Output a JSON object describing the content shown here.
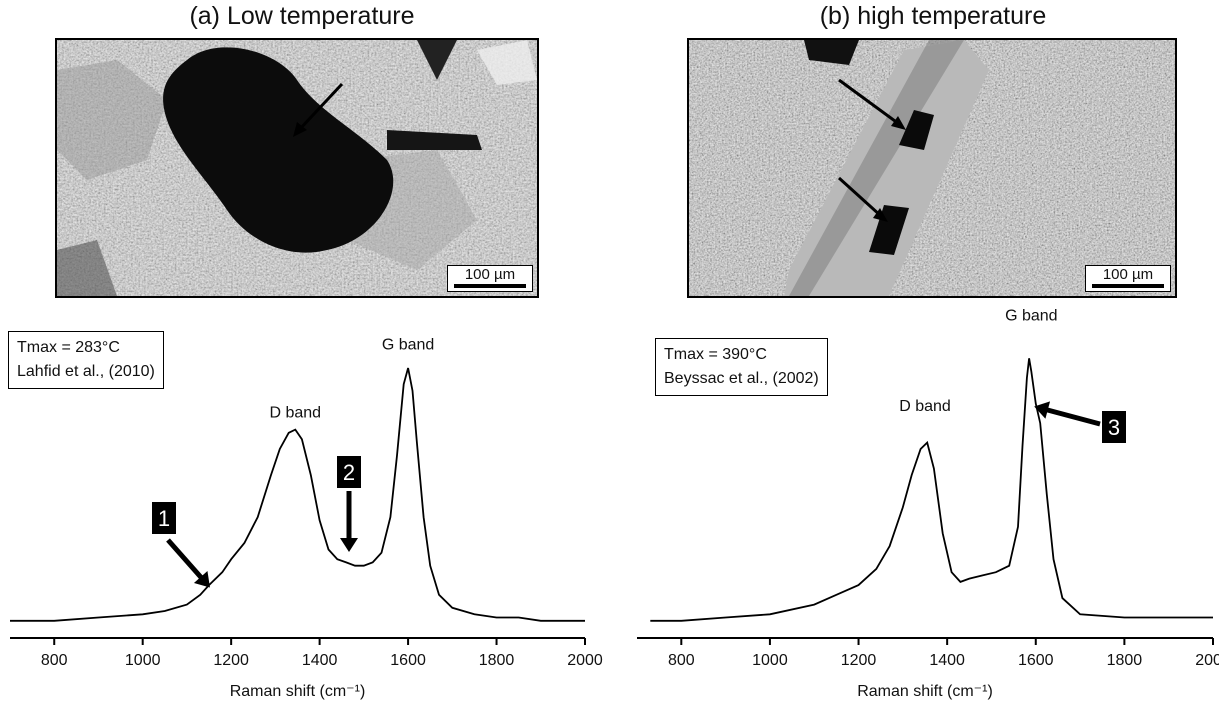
{
  "panels": [
    {
      "id": "a",
      "title": "(a) Low temperature",
      "scale_label": "100 µm",
      "tmax": "Tmax = 283°C",
      "reference": "Lahfid et al., (2010)",
      "annotations": [
        "1",
        "2"
      ]
    },
    {
      "id": "b",
      "title": "(b) high temperature",
      "scale_label": "100 µm",
      "tmax": "Tmax = 390°C",
      "reference": "Beyssac et al., (2002)",
      "annotations": [
        "3"
      ]
    }
  ],
  "chart_data": [
    {
      "type": "line",
      "title": "(a) Low temperature",
      "xlabel": "Raman shift (cm⁻¹)",
      "ylabel": "",
      "xlim": [
        700,
        2000
      ],
      "xticks": [
        800,
        1000,
        1200,
        1400,
        1600,
        1800,
        2000
      ],
      "grid": false,
      "peak_labels": [
        {
          "text": "D band",
          "x": 1345,
          "y": 0.6
        },
        {
          "text": "G band",
          "x": 1600,
          "y": 0.81
        }
      ],
      "callouts": [
        {
          "text": "1",
          "x": 1150,
          "y": 0.12
        },
        {
          "text": "2",
          "x": 1490,
          "y": 0.19
        }
      ],
      "x": [
        700,
        800,
        900,
        1000,
        1050,
        1100,
        1130,
        1150,
        1180,
        1200,
        1230,
        1260,
        1290,
        1310,
        1330,
        1345,
        1360,
        1380,
        1400,
        1420,
        1440,
        1460,
        1480,
        1500,
        1520,
        1540,
        1560,
        1575,
        1590,
        1600,
        1610,
        1620,
        1635,
        1650,
        1670,
        1700,
        1750,
        1800,
        1850,
        1900,
        1950,
        2000
      ],
      "y": [
        0.01,
        0.01,
        0.02,
        0.03,
        0.04,
        0.06,
        0.09,
        0.12,
        0.16,
        0.2,
        0.25,
        0.33,
        0.46,
        0.54,
        0.59,
        0.6,
        0.57,
        0.46,
        0.32,
        0.23,
        0.2,
        0.19,
        0.18,
        0.18,
        0.19,
        0.22,
        0.33,
        0.52,
        0.74,
        0.79,
        0.72,
        0.56,
        0.33,
        0.18,
        0.09,
        0.05,
        0.03,
        0.02,
        0.02,
        0.01,
        0.01,
        0.01
      ]
    },
    {
      "type": "line",
      "title": "(b) high temperature",
      "xlabel": "Raman shift (cm⁻¹)",
      "ylabel": "",
      "xlim": [
        700,
        2000
      ],
      "xticks": [
        800,
        1000,
        1200,
        1400,
        1600,
        1800,
        2000
      ],
      "grid": false,
      "peak_labels": [
        {
          "text": "D band",
          "x": 1350,
          "y": 0.62
        },
        {
          "text": "G band",
          "x": 1590,
          "y": 0.9
        }
      ],
      "callouts": [
        {
          "text": "3",
          "x": 1615,
          "y": 0.66
        }
      ],
      "x": [
        730,
        800,
        900,
        1000,
        1100,
        1150,
        1200,
        1240,
        1270,
        1300,
        1320,
        1340,
        1355,
        1370,
        1390,
        1410,
        1430,
        1450,
        1480,
        1510,
        1540,
        1560,
        1570,
        1580,
        1585,
        1590,
        1600,
        1610,
        1625,
        1640,
        1660,
        1700,
        1800,
        1900,
        2000
      ],
      "y": [
        0.01,
        0.01,
        0.02,
        0.03,
        0.06,
        0.09,
        0.12,
        0.17,
        0.24,
        0.36,
        0.46,
        0.54,
        0.56,
        0.48,
        0.28,
        0.16,
        0.13,
        0.14,
        0.15,
        0.16,
        0.18,
        0.3,
        0.55,
        0.76,
        0.82,
        0.78,
        0.68,
        0.62,
        0.4,
        0.2,
        0.08,
        0.03,
        0.02,
        0.02,
        0.02
      ]
    }
  ]
}
